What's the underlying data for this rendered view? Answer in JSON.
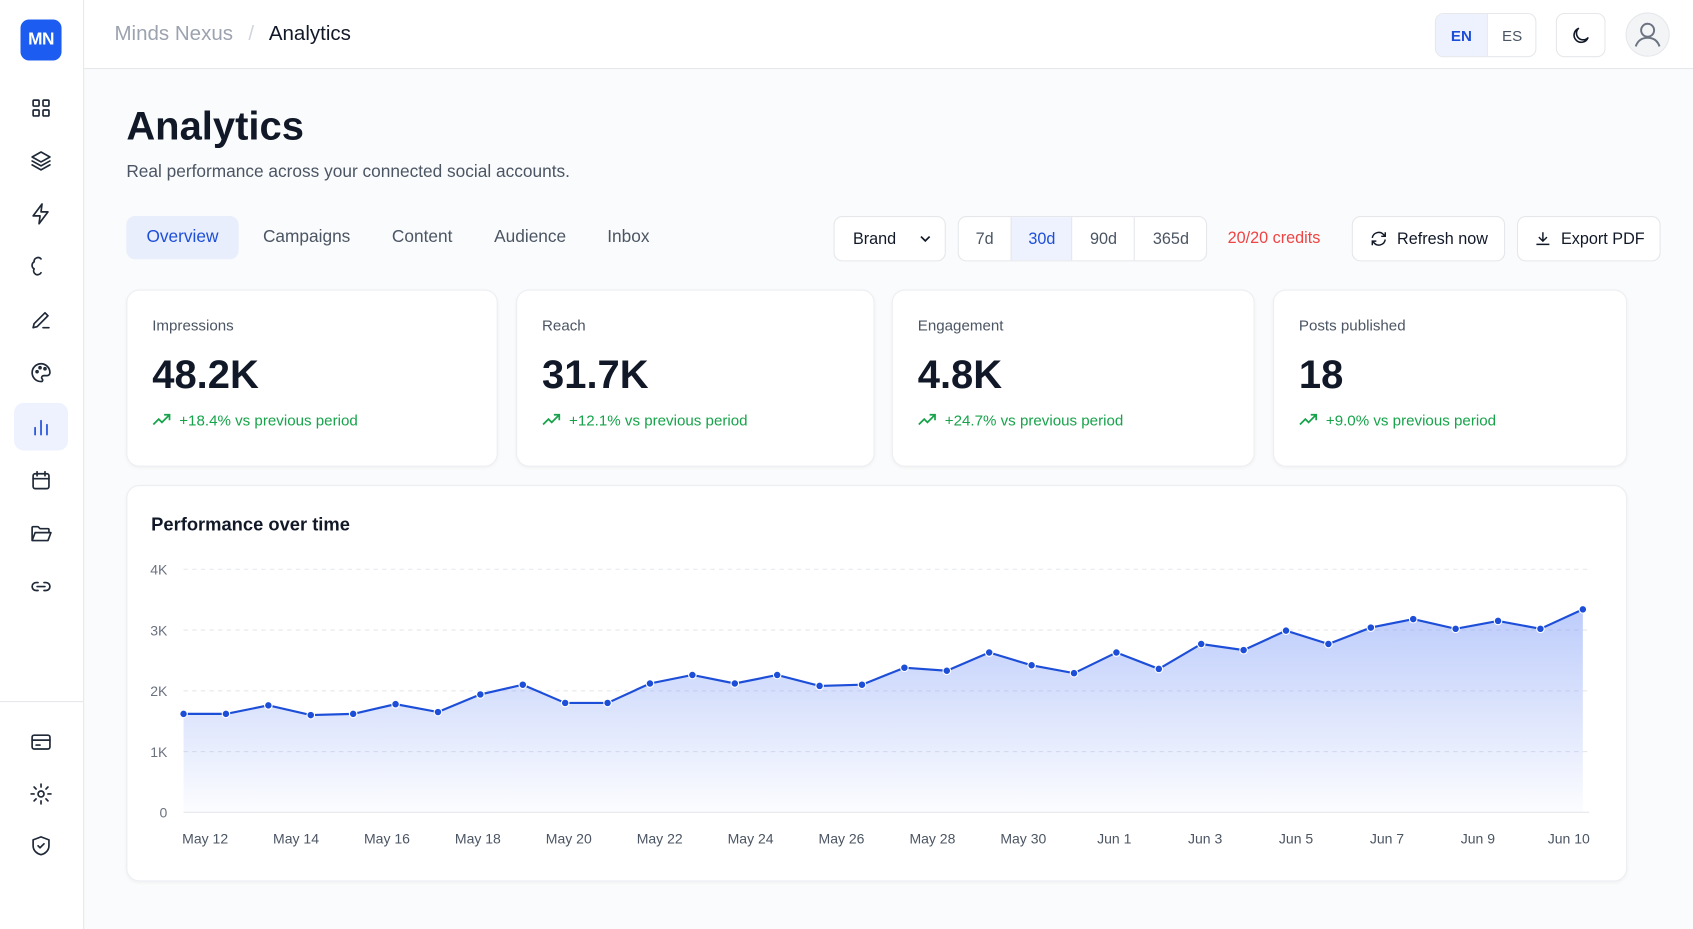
{
  "logo": "MN",
  "breadcrumb": [
    "Minds Nexus",
    "Analytics"
  ],
  "breadcrumb_separator": "/",
  "languages": [
    "EN",
    "ES"
  ],
  "page": {
    "title": "Analytics",
    "subtitle": "Real performance across your connected social accounts."
  },
  "tabs": [
    "Overview",
    "Campaigns",
    "Content",
    "Audience",
    "Inbox"
  ],
  "brand_select": "Brand",
  "ranges": [
    "7d",
    "30d",
    "90d",
    "365d"
  ],
  "credits": "20/20 credits",
  "buttons": [
    "Refresh now",
    "Export PDF"
  ],
  "stats": [
    {
      "label": "Impressions",
      "value": "48.2K",
      "change": "+18.4% vs previous period"
    },
    {
      "label": "Reach",
      "value": "31.7K",
      "change": "+12.1% vs previous period"
    },
    {
      "label": "Engagement",
      "value": "4.8K",
      "change": "+24.7% vs previous period"
    },
    {
      "label": "Posts published",
      "value": "18",
      "change": "+9.0% vs previous period"
    }
  ],
  "chart_data": {
    "type": "line",
    "title": "Performance over time",
    "color": "#1d4ed8",
    "x_labels": [
      "May 12",
      "May 14",
      "May 16",
      "May 18",
      "May 20",
      "May 22",
      "May 24",
      "May 26",
      "May 28",
      "May 30",
      "Jun 1",
      "Jun 3",
      "Jun 5",
      "Jun 7",
      "Jun 9",
      "Jun 10"
    ],
    "values": [
      1620,
      1620,
      1760,
      1600,
      1620,
      1780,
      1650,
      1940,
      2100,
      1800,
      1800,
      2120,
      2260,
      2120,
      2260,
      2080,
      2100,
      2380,
      2330,
      2630,
      2420,
      2290,
      2630,
      2360,
      2770,
      2670,
      2990,
      2770,
      3040,
      3180,
      3020,
      3150,
      3020,
      3340
    ],
    "ylim": [
      0,
      4000
    ],
    "yticks": [
      0,
      {
        "value": 1000,
        "label": "1K"
      },
      {
        "value": 2000,
        "label": "2K"
      },
      {
        "value": 3000,
        "label": "3K"
      },
      {
        "value": 4000,
        "label": "4K"
      }
    ],
    "grid": true
  }
}
